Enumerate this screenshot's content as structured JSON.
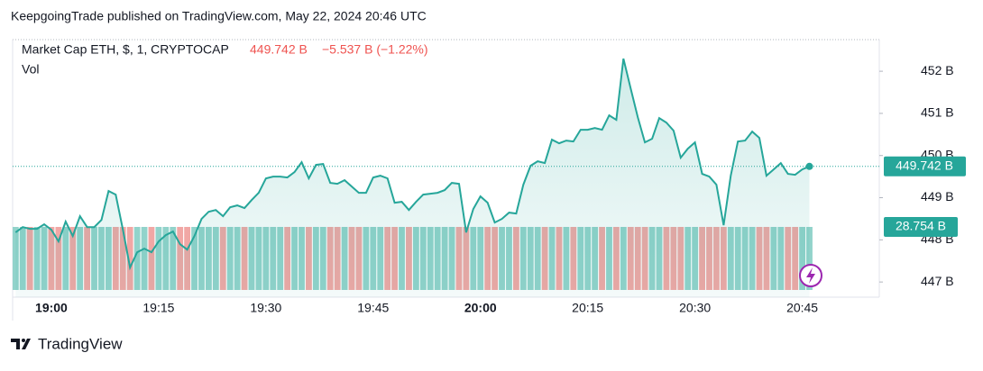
{
  "header": "KeepgoingTrade published on TradingView.com, May 22, 2024 20:46 UTC",
  "footer": "TradingView",
  "chart_data": {
    "type": "line",
    "title": "Market Cap ETH, $, 1, CRYPTOCAP",
    "last_value_label": "449.742 B",
    "change_label": "−5.537 B (−1.22%)",
    "volume": {
      "name": "Vol",
      "last_label": "28.754 B",
      "up_color": "#92d3cb",
      "down_color": "#f1a7a5"
    },
    "categories": [
      null,
      null,
      null,
      null,
      null,
      "19:00",
      null,
      null,
      null,
      null,
      null,
      null,
      null,
      null,
      null,
      null,
      null,
      null,
      null,
      null,
      "19:15",
      null,
      null,
      null,
      null,
      null,
      null,
      null,
      null,
      null,
      null,
      null,
      null,
      null,
      null,
      "19:30",
      null,
      null,
      null,
      null,
      null,
      null,
      null,
      null,
      null,
      null,
      null,
      null,
      null,
      null,
      "19:45",
      null,
      null,
      null,
      null,
      null,
      null,
      null,
      null,
      null,
      null,
      null,
      null,
      null,
      null,
      "20:00",
      null,
      null,
      null,
      null,
      null,
      null,
      null,
      null,
      null,
      null,
      null,
      null,
      null,
      null,
      "20:15",
      null,
      null,
      null,
      null,
      null,
      null,
      null,
      null,
      null,
      null,
      null,
      null,
      null,
      null,
      "20:30",
      null,
      null,
      null,
      null,
      null,
      null,
      null,
      null,
      null,
      null,
      null,
      null,
      null,
      null,
      "20:45",
      null
    ],
    "series": [
      {
        "name": "Market Cap ETH",
        "color": "#26a69a",
        "values": [
          448.175,
          448.303,
          448.261,
          448.261,
          448.368,
          448.239,
          447.962,
          448.432,
          448.09,
          448.56,
          448.303,
          448.303,
          448.474,
          449.158,
          449.073,
          448.239,
          447.342,
          447.705,
          447.791,
          447.705,
          447.962,
          448.111,
          448.197,
          447.897,
          447.769,
          448.09,
          448.496,
          448.667,
          448.709,
          448.56,
          448.774,
          448.816,
          448.752,
          448.944,
          449.115,
          449.457,
          449.5,
          449.5,
          449.479,
          449.607,
          449.842,
          449.457,
          449.778,
          449.799,
          449.35,
          449.329,
          449.415,
          449.265,
          449.115,
          449.115,
          449.479,
          449.521,
          449.457,
          448.88,
          448.902,
          448.709,
          448.902,
          449.073,
          449.094,
          449.115,
          449.18,
          449.35,
          449.329,
          448.175,
          448.731,
          449.03,
          448.88,
          448.41,
          448.496,
          448.645,
          448.624,
          449.308,
          449.756,
          449.863,
          449.821,
          450.376,
          450.291,
          450.355,
          450.333,
          450.611,
          450.611,
          450.654,
          450.611,
          450.953,
          450.846,
          452.299,
          451.594,
          450.91,
          450.312,
          450.397,
          450.889,
          450.782,
          450.59,
          449.949,
          450.162,
          450.312,
          449.564,
          449.5,
          449.308,
          448.346,
          449.521,
          450.333,
          450.355,
          450.568,
          450.419,
          449.521,
          449.671,
          449.821,
          449.564,
          449.543,
          449.671,
          449.742
        ]
      }
    ],
    "ylim": [
      446.64,
      452.75
    ],
    "yticks": [
      {
        "value": 447,
        "label": "447 B"
      },
      {
        "value": 448,
        "label": "448 B"
      },
      {
        "value": 449,
        "label": "449 B"
      },
      {
        "value": 450,
        "label": "450 B"
      },
      {
        "value": 451,
        "label": "451 B"
      },
      {
        "value": 452,
        "label": "452 B"
      }
    ]
  }
}
